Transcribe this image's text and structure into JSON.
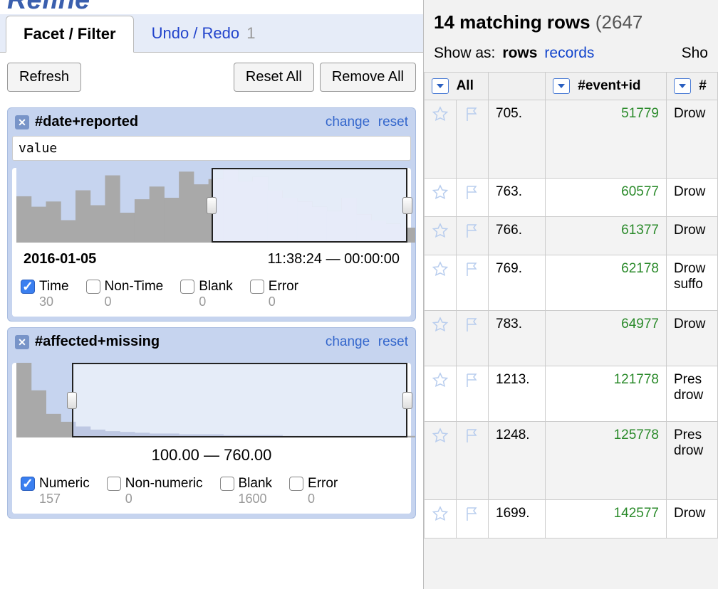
{
  "app_logo_text": "Refine",
  "tabs": {
    "facet": "Facet / Filter",
    "undo": "Undo / Redo",
    "undo_badge": "1"
  },
  "toolbar": {
    "refresh": "Refresh",
    "reset_all": "Reset All",
    "remove_all": "Remove All"
  },
  "facet1": {
    "title": "#date+reported",
    "change": "change",
    "reset": "reset",
    "expression": "value",
    "range_left": "2016-01-05",
    "range_right": "11:38:24 — 00:00:00",
    "histogram": {
      "bars": [
        62,
        48,
        55,
        30,
        70,
        50,
        90,
        40,
        58,
        75,
        60,
        95,
        78,
        85,
        100,
        82,
        88,
        70,
        60,
        55,
        48,
        42,
        60,
        38,
        30,
        25,
        20
      ],
      "bg_color": "#a9a9a9",
      "fg_color": "#c9d2f2",
      "selection_start_pct": 49,
      "selection_end_pct": 98,
      "height": 105
    },
    "checks": {
      "time_label": "Time",
      "time_count": "30",
      "time_checked": true,
      "nontime_label": "Non-Time",
      "nontime_count": "0",
      "nontime_checked": false,
      "blank_label": "Blank",
      "blank_count": "0",
      "blank_checked": false,
      "error_label": "Error",
      "error_count": "0",
      "error_checked": false
    }
  },
  "facet2": {
    "title": "#affected+missing",
    "change": "change",
    "reset": "reset",
    "range_center": "100.00 — 760.00",
    "histogram": {
      "bars": [
        95,
        60,
        30,
        20,
        14,
        10,
        8,
        7,
        6,
        5,
        5,
        4,
        4,
        4,
        3,
        3,
        3,
        3,
        2,
        2,
        2,
        2,
        2,
        2,
        2,
        2,
        2
      ],
      "bg_color": "#a9a9a9",
      "fg_color": "#6f86c2",
      "selection_start_pct": 14,
      "selection_end_pct": 98,
      "height": 105
    },
    "checks": {
      "numeric_label": "Numeric",
      "numeric_count": "157",
      "numeric_checked": true,
      "nonnumeric_label": "Non-numeric",
      "nonnumeric_count": "0",
      "nonnumeric_checked": false,
      "blank_label": "Blank",
      "blank_count": "1600",
      "blank_checked": false,
      "error_label": "Error",
      "error_count": "0",
      "error_checked": false
    }
  },
  "right": {
    "matching_bold": "14 matching rows",
    "matching_rest": "(2647",
    "show_as": "Show as:",
    "rows": "rows",
    "records": "records",
    "show_trailing": "Sho"
  },
  "table": {
    "col_all": "All",
    "col_event": "#event+id",
    "col_extra": "#",
    "rows": [
      {
        "n": "705.",
        "id": "51779",
        "txt": "Drow",
        "h": "tall"
      },
      {
        "n": "763.",
        "id": "60577",
        "txt": "Drow",
        "h": "short"
      },
      {
        "n": "766.",
        "id": "61377",
        "txt": "Drow",
        "h": "short"
      },
      {
        "n": "769.",
        "id": "62178",
        "txt": "Drow\nsuffo",
        "h": "med"
      },
      {
        "n": "783.",
        "id": "64977",
        "txt": "Drow",
        "h": "med"
      },
      {
        "n": "1213.",
        "id": "121778",
        "txt": "Pres\ndrow",
        "h": "med"
      },
      {
        "n": "1248.",
        "id": "125778",
        "txt": "Pres\ndrow",
        "h": "tall"
      },
      {
        "n": "1699.",
        "id": "142577",
        "txt": "Drow",
        "h": "short"
      }
    ]
  },
  "colors": {
    "link": "#2244cc",
    "panel_bg": "#c6d4ef",
    "id_green": "#2a8a2a"
  }
}
